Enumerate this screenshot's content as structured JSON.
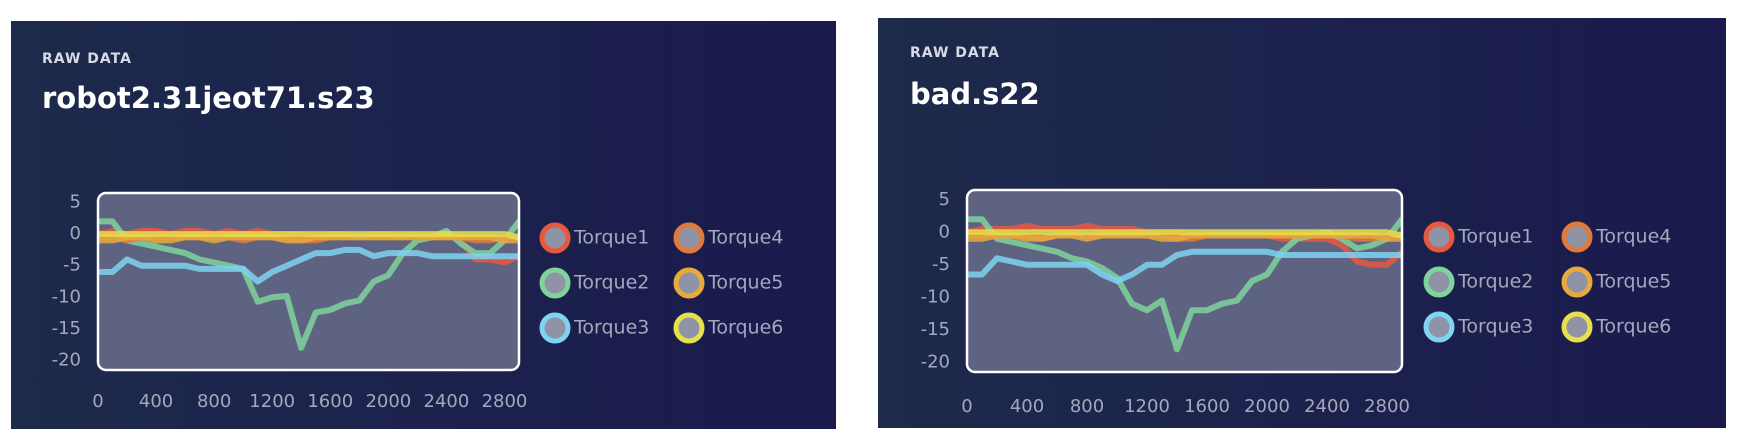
{
  "chart_data": [
    {
      "type": "line",
      "label": "RAW DATA",
      "title": "robot2.31jeot71.s23",
      "x": [
        0,
        100,
        200,
        300,
        400,
        500,
        600,
        700,
        800,
        900,
        1000,
        1100,
        1200,
        1300,
        1400,
        1500,
        1600,
        1700,
        1800,
        1900,
        2000,
        2100,
        2200,
        2300,
        2400,
        2500,
        2600,
        2700,
        2800,
        2900
      ],
      "xlim": [
        0,
        2900
      ],
      "xticks": [
        0,
        400,
        800,
        1200,
        1600,
        2000,
        2400,
        2800
      ],
      "ylim": [
        -21.5,
        6.5
      ],
      "yticks": [
        5,
        0,
        -5,
        -10,
        -15,
        -20
      ],
      "series": [
        {
          "name": "Torque1",
          "color": "#e8583f",
          "values": [
            0,
            0.5,
            0,
            0.5,
            0.5,
            0,
            0.5,
            0.5,
            0,
            0.5,
            0,
            0.5,
            0,
            0,
            0,
            -0.5,
            0,
            0,
            -0.5,
            0,
            0,
            -0.5,
            0,
            -0.5,
            0,
            -1,
            -4,
            -4,
            -4.5,
            -3.5
          ]
        },
        {
          "name": "Torque2",
          "color": "#7fd49c",
          "values": [
            2,
            2,
            -1,
            -1.5,
            -2,
            -2.5,
            -3,
            -4,
            -4.5,
            -5,
            -5.5,
            -10.7,
            -10,
            -9.8,
            -18,
            -12.4,
            -12,
            -11,
            -10.5,
            -7.5,
            -6.5,
            -3,
            -1,
            -0.5,
            0.5,
            -1.5,
            -3,
            -3,
            -1,
            2
          ]
        },
        {
          "name": "Torque3",
          "color": "#7ed4f2",
          "values": [
            -6,
            -6,
            -4,
            -5,
            -5,
            -5,
            -5,
            -5.5,
            -5.5,
            -5.5,
            -5.5,
            -7.5,
            -6,
            -5,
            -4,
            -3,
            -3,
            -2.5,
            -2.5,
            -3.5,
            -3,
            -3,
            -3,
            -3.5,
            -3.5,
            -3.5,
            -3.5,
            -3.5,
            -3.5,
            -3.5
          ]
        },
        {
          "name": "Torque4",
          "color": "#e07a3c",
          "values": [
            -0.5,
            -0.5,
            -1,
            -0.5,
            -0.5,
            -0.5,
            -0.5,
            -0.5,
            -0.5,
            -0.5,
            -1,
            -0.5,
            -0.5,
            -0.5,
            -1,
            -1,
            -0.5,
            -0.5,
            -0.5,
            -0.5,
            -0.5,
            -0.5,
            -0.5,
            -0.5,
            -0.5,
            -0.5,
            -1,
            -1,
            -0.5,
            -0.5
          ]
        },
        {
          "name": "Torque5",
          "color": "#e9a93c",
          "values": [
            -1,
            -1,
            -0.5,
            -0.5,
            -1,
            -1,
            -0.5,
            -0.5,
            -1,
            -0.5,
            -0.5,
            -0.5,
            -0.5,
            -1,
            -1,
            -0.5,
            -0.5,
            -0.5,
            -0.5,
            -0.5,
            -0.5,
            -0.5,
            -0.5,
            -0.5,
            -0.5,
            -0.5,
            -0.5,
            -0.5,
            -1,
            -1
          ]
        },
        {
          "name": "Torque6",
          "color": "#e8df4c",
          "values": [
            0,
            0,
            0,
            0,
            0,
            0,
            0,
            0,
            0,
            0,
            0,
            0,
            0,
            0,
            0,
            0,
            0,
            0,
            0,
            0,
            0,
            0,
            0,
            0,
            0,
            0,
            0,
            0,
            0,
            -0.5
          ]
        }
      ]
    },
    {
      "type": "line",
      "label": "RAW DATA",
      "title": "bad.s22",
      "x": [
        0,
        100,
        200,
        300,
        400,
        500,
        600,
        700,
        800,
        900,
        1000,
        1100,
        1200,
        1300,
        1400,
        1500,
        1600,
        1700,
        1800,
        1900,
        2000,
        2100,
        2200,
        2300,
        2400,
        2500,
        2600,
        2700,
        2800,
        2900
      ],
      "xlim": [
        0,
        2900
      ],
      "xticks": [
        0,
        400,
        800,
        1200,
        1600,
        2000,
        2400,
        2800
      ],
      "ylim": [
        -21.5,
        6.5
      ],
      "yticks": [
        5,
        0,
        -5,
        -10,
        -15,
        -20
      ],
      "series": [
        {
          "name": "Torque1",
          "color": "#e8583f",
          "values": [
            0,
            0.5,
            0.5,
            0.5,
            1,
            0.5,
            0.5,
            0.5,
            1,
            0.5,
            0.5,
            0.5,
            0,
            0,
            0,
            -0.5,
            -0.5,
            -0.5,
            -0.5,
            -0.5,
            -0.5,
            -1,
            -1,
            -1,
            -1,
            -2,
            -4.5,
            -5,
            -5,
            -3
          ]
        },
        {
          "name": "Torque2",
          "color": "#7fd49c",
          "values": [
            2,
            2,
            -1,
            -1.5,
            -2,
            -2.5,
            -3,
            -4,
            -4.5,
            -5.5,
            -7,
            -11,
            -12,
            -10.5,
            -18,
            -12,
            -12,
            -11,
            -10.5,
            -7.5,
            -6.5,
            -3,
            -1,
            -0.5,
            0,
            -1,
            -2.5,
            -2,
            -1,
            2
          ]
        },
        {
          "name": "Torque3",
          "color": "#7ed4f2",
          "values": [
            -6.5,
            -6.5,
            -4,
            -4.5,
            -5,
            -5,
            -5,
            -5,
            -5,
            -6.5,
            -7.5,
            -6.5,
            -5,
            -5,
            -3.5,
            -3,
            -3,
            -3,
            -3,
            -3,
            -3,
            -3.5,
            -3.5,
            -3.5,
            -3.5,
            -3.5,
            -3.5,
            -3.5,
            -3.5,
            -3.5
          ]
        },
        {
          "name": "Torque4",
          "color": "#e07a3c",
          "values": [
            -0.5,
            -0.5,
            -0.5,
            -0.5,
            -0.5,
            -1,
            -0.5,
            -0.5,
            -0.5,
            -0.5,
            -0.5,
            -0.5,
            -0.5,
            -0.5,
            -1,
            -1,
            -0.5,
            -0.5,
            -0.5,
            -0.5,
            -0.5,
            -0.5,
            -0.5,
            -0.5,
            -0.5,
            -0.5,
            -1,
            -1,
            -0.5,
            -0.5
          ]
        },
        {
          "name": "Torque5",
          "color": "#e9a93c",
          "values": [
            -1,
            -1,
            -0.5,
            -0.5,
            -1,
            -1,
            -0.5,
            -0.5,
            -1,
            -0.5,
            -0.5,
            -0.5,
            -0.5,
            -1,
            -1,
            -0.5,
            -0.5,
            -0.5,
            -0.5,
            -0.5,
            -0.5,
            -0.5,
            -0.5,
            -0.5,
            -0.5,
            -0.5,
            -0.5,
            -0.5,
            -1,
            -1
          ]
        },
        {
          "name": "Torque6",
          "color": "#e8df4c",
          "values": [
            0,
            0,
            0,
            0,
            0,
            0,
            0,
            0,
            0,
            0,
            0,
            0,
            0,
            0,
            0,
            0,
            0,
            0,
            0,
            0,
            0,
            0,
            0,
            0,
            0,
            0,
            0,
            0,
            0,
            -0.5
          ]
        }
      ]
    }
  ]
}
